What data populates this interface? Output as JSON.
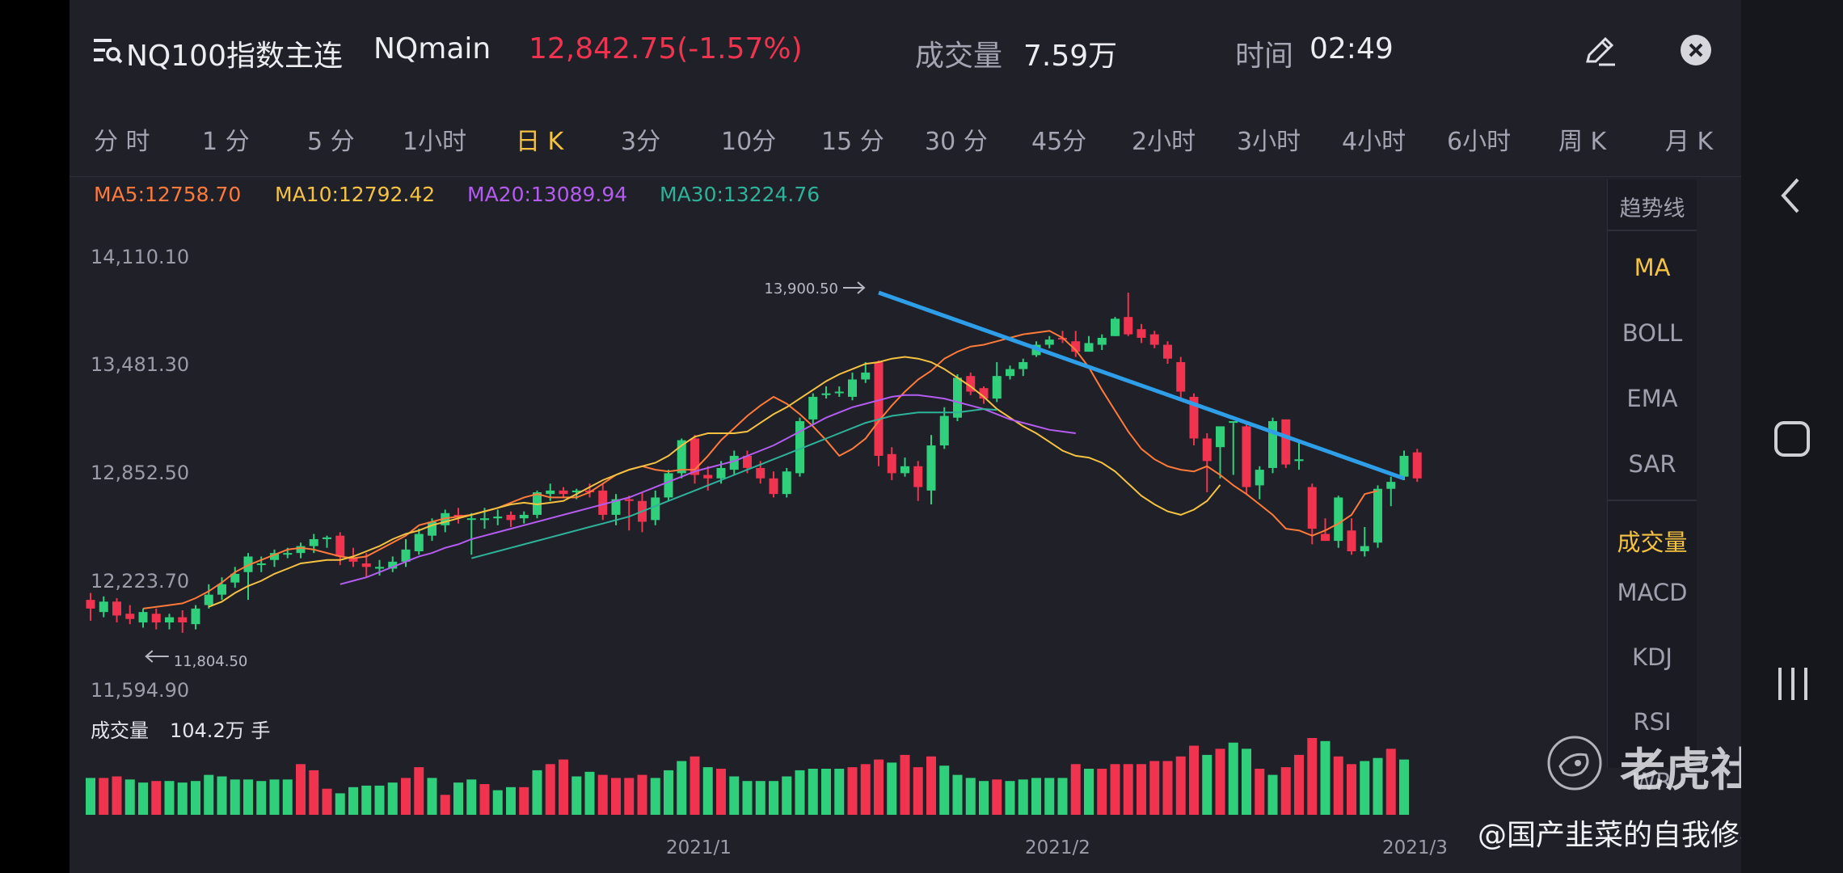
{
  "header": {
    "menu_icon": "menu-search-icon",
    "instrument_name": "NQ100指数主连",
    "symbol": "NQmain",
    "price_change": "12,842.75(-1.57%)",
    "volume_label": "成交量",
    "volume_value": "7.59万",
    "time_label": "时间",
    "time_value": "02:49",
    "edit_icon": "pencil-icon",
    "close_icon": "close-icon"
  },
  "tabs": [
    "分 时",
    "1 分",
    "5 分",
    "1小时",
    "日 K",
    "3分",
    "10分",
    "15 分",
    "30 分",
    "45分",
    "2小时",
    "3小时",
    "4小时",
    "6小时",
    "周 K",
    "月 K"
  ],
  "active_tab": "日 K",
  "ma_legend": {
    "ma5": "MA5:12758.70",
    "ma10": "MA10:12792.42",
    "ma20": "MA20:13089.94",
    "ma30": "MA30:13224.76"
  },
  "price_axis": [
    "14,110.10",
    "13,481.30",
    "12,852.50",
    "12,223.70",
    "11,594.90"
  ],
  "high_marker": "13,900.50",
  "low_marker": "11,804.50",
  "volume_panel": {
    "label": "成交量",
    "value": "104.2万 手"
  },
  "date_axis": [
    "2021/1",
    "2021/2",
    "2021/3"
  ],
  "side_menu": {
    "top": [
      "趋势线",
      "MA",
      "BOLL",
      "EMA",
      "SAR"
    ],
    "bottom": [
      "成交量",
      "MACD",
      "KDJ",
      "RSI",
      "WR"
    ],
    "highlighted": [
      "MA",
      "成交量"
    ]
  },
  "watermark": {
    "brand": "老虎社区",
    "handle": "@国产韭菜的自我修养"
  },
  "colors": {
    "up": "#2fcf7c",
    "down": "#f0334f",
    "ma5": "#ff7a3a",
    "ma10": "#f5c242",
    "ma20": "#b45cf0",
    "ma30": "#2fb29a",
    "trendline": "#2f9ee8",
    "price_down": "#f0334f"
  },
  "chart_data": {
    "type": "candlestick",
    "ylim": [
      11594.9,
      14110.1
    ],
    "candles": [
      [
        12130,
        12080,
        12170,
        12010
      ],
      [
        12060,
        12120,
        12150,
        12030
      ],
      [
        12120,
        12040,
        12140,
        12000
      ],
      [
        12050,
        12020,
        12100,
        11990
      ],
      [
        12000,
        12060,
        12080,
        11970
      ],
      [
        12050,
        12000,
        12080,
        11960
      ],
      [
        12000,
        12030,
        12050,
        11960
      ],
      [
        12030,
        12000,
        12070,
        11940
      ],
      [
        11990,
        12080,
        12100,
        11960
      ],
      [
        12100,
        12160,
        12220,
        12080
      ],
      [
        12160,
        12220,
        12260,
        12130
      ],
      [
        12230,
        12280,
        12320,
        12200
      ],
      [
        12290,
        12380,
        12400,
        12130
      ],
      [
        12340,
        12340,
        12380,
        12290
      ],
      [
        12360,
        12400,
        12420,
        12320
      ],
      [
        12400,
        12400,
        12430,
        12370
      ],
      [
        12400,
        12440,
        12460,
        12370
      ],
      [
        12440,
        12480,
        12510,
        12400
      ],
      [
        12480,
        12490,
        12500,
        12430
      ],
      [
        12500,
        12380,
        12520,
        12330
      ],
      [
        12370,
        12350,
        12430,
        12320
      ],
      [
        12340,
        12320,
        12400,
        12260
      ],
      [
        12310,
        12320,
        12360,
        12270
      ],
      [
        12310,
        12350,
        12380,
        12290
      ],
      [
        12350,
        12420,
        12480,
        12320
      ],
      [
        12410,
        12510,
        12540,
        12390
      ],
      [
        12500,
        12580,
        12600,
        12470
      ],
      [
        12560,
        12630,
        12650,
        12520
      ],
      [
        12620,
        12610,
        12660,
        12570
      ],
      [
        12600,
        12600,
        12630,
        12390
      ],
      [
        12590,
        12600,
        12660,
        12540
      ],
      [
        12600,
        12610,
        12650,
        12560
      ],
      [
        12620,
        12590,
        12640,
        12550
      ],
      [
        12600,
        12620,
        12640,
        12570
      ],
      [
        12620,
        12750,
        12760,
        12600
      ],
      [
        12740,
        12760,
        12800,
        12700
      ],
      [
        12760,
        12740,
        12780,
        12720
      ],
      [
        12750,
        12760,
        12770,
        12710
      ],
      [
        12760,
        12750,
        12800,
        12720
      ],
      [
        12760,
        12620,
        12800,
        12590
      ],
      [
        12620,
        12710,
        12740,
        12560
      ],
      [
        12710,
        12700,
        12730,
        12530
      ],
      [
        12700,
        12580,
        12750,
        12520
      ],
      [
        12590,
        12720,
        12760,
        12560
      ],
      [
        12720,
        12860,
        12880,
        12700
      ],
      [
        12860,
        13050,
        13060,
        12830
      ],
      [
        13060,
        12850,
        13080,
        12800
      ],
      [
        12850,
        12830,
        12900,
        12760
      ],
      [
        12830,
        12890,
        12930,
        12800
      ],
      [
        12880,
        12960,
        12990,
        12850
      ],
      [
        12960,
        12890,
        12990,
        12860
      ],
      [
        12890,
        12830,
        12930,
        12800
      ],
      [
        12830,
        12740,
        12870,
        12720
      ],
      [
        12740,
        12870,
        12890,
        12720
      ],
      [
        12860,
        13160,
        13180,
        12840
      ],
      [
        13170,
        13300,
        13320,
        13140
      ],
      [
        13310,
        13320,
        13360,
        13290
      ],
      [
        13330,
        13330,
        13360,
        13300
      ],
      [
        13300,
        13400,
        13440,
        13280
      ],
      [
        13400,
        13440,
        13500,
        13380
      ],
      [
        13500,
        12960,
        13510,
        12900
      ],
      [
        12970,
        12860,
        13010,
        12820
      ],
      [
        12860,
        12900,
        12950,
        12840
      ],
      [
        12900,
        12780,
        12930,
        12700
      ],
      [
        12760,
        13020,
        13080,
        12680
      ],
      [
        13020,
        13190,
        13240,
        13000
      ],
      [
        13180,
        13410,
        13430,
        13160
      ],
      [
        13420,
        13330,
        13440,
        13310
      ],
      [
        13350,
        13290,
        13360,
        13260
      ],
      [
        13290,
        13420,
        13500,
        13270
      ],
      [
        13420,
        13460,
        13480,
        13400
      ],
      [
        13460,
        13500,
        13520,
        13420
      ],
      [
        13540,
        13600,
        13620,
        13530
      ],
      [
        13600,
        13630,
        13650,
        13580
      ],
      [
        13640,
        13630,
        13680,
        13610
      ],
      [
        13620,
        13560,
        13680,
        13530
      ],
      [
        13560,
        13610,
        13650,
        13560
      ],
      [
        13600,
        13640,
        13660,
        13570
      ],
      [
        13650,
        13750,
        13760,
        13650
      ],
      [
        13760,
        13660,
        13900,
        13650
      ],
      [
        13690,
        13640,
        13720,
        13610
      ],
      [
        13660,
        13600,
        13680,
        13580
      ],
      [
        13600,
        13520,
        13620,
        13490
      ],
      [
        13500,
        13330,
        13530,
        13280
      ],
      [
        13300,
        13060,
        13320,
        13020
      ],
      [
        13060,
        12930,
        13090,
        12750
      ],
      [
        13010,
        13130,
        13130,
        12830
      ],
      [
        13150,
        13160,
        13150,
        12850
      ],
      [
        13130,
        12780,
        13140,
        12740
      ],
      [
        12790,
        12880,
        12900,
        12710
      ],
      [
        12890,
        13160,
        13180,
        12860
      ],
      [
        13170,
        12910,
        13170,
        12890
      ],
      [
        12930,
        12940,
        13050,
        12880
      ],
      [
        12780,
        12540,
        12800,
        12450
      ],
      [
        12510,
        12470,
        12600,
        12470
      ],
      [
        12470,
        12720,
        12730,
        12430
      ],
      [
        12530,
        12410,
        12600,
        12390
      ],
      [
        12410,
        12440,
        12550,
        12380
      ],
      [
        12460,
        12770,
        12790,
        12430
      ],
      [
        12770,
        12810,
        12840,
        12670
      ],
      [
        12840,
        12960,
        12990,
        12820
      ],
      [
        12980,
        12830,
        13000,
        12810
      ]
    ],
    "ma_series": {
      "MA5": {
        "start": 4,
        "values": [
          12080,
          12090,
          12100,
          12110,
          12140,
          12180,
          12230,
          12290,
          12330,
          12360,
          12390,
          12420,
          12430,
          12420,
          12400,
          12380,
          12370,
          12380,
          12420,
          12460,
          12500,
          12560,
          12580,
          12600,
          12610,
          12620,
          12640,
          12660,
          12690,
          12720,
          12740,
          12720,
          12720,
          12720,
          12750,
          12800,
          12850,
          12880,
          12900,
          12880,
          12870,
          12880,
          12880,
          12960,
          13050,
          13120,
          13190,
          13250,
          13300,
          13260,
          13200,
          13130,
          13050,
          12960,
          13000,
          13060,
          13160,
          13250,
          13330,
          13400,
          13450,
          13520,
          13560,
          13590,
          13600,
          13620,
          13640,
          13660,
          13670,
          13680,
          13640,
          13570,
          13470,
          13340,
          13220,
          13100,
          13000,
          12940,
          12900,
          12880,
          12870,
          12900,
          12850,
          12790,
          12740,
          12680,
          12620,
          12540,
          12530,
          12500,
          12530,
          12570,
          12620,
          12740,
          12758.7
        ]
      },
      "MA10": {
        "start": 9,
        "values": [
          12090,
          12120,
          12170,
          12210,
          12240,
          12280,
          12310,
          12340,
          12350,
          12360,
          12360,
          12380,
          12410,
          12440,
          12480,
          12510,
          12530,
          12560,
          12580,
          12600,
          12620,
          12640,
          12660,
          12680,
          12690,
          12680,
          12690,
          12700,
          12740,
          12780,
          12820,
          12850,
          12880,
          12900,
          12920,
          12960,
          13020,
          13070,
          13090,
          13090,
          13090,
          13100,
          13150,
          13200,
          13240,
          13290,
          13340,
          13390,
          13430,
          13460,
          13490,
          13500,
          13520,
          13530,
          13520,
          13500,
          13460,
          13410,
          13360,
          13300,
          13230,
          13180,
          13130,
          13090,
          13040,
          12990,
          12960,
          12950,
          12920,
          12870,
          12800,
          12730,
          12680,
          12640,
          12620,
          12650,
          12700,
          12792.42
        ]
      },
      "MA20": {
        "start": 19,
        "values": [
          12220,
          12240,
          12260,
          12290,
          12320,
          12350,
          12380,
          12400,
          12430,
          12450,
          12480,
          12500,
          12520,
          12540,
          12560,
          12580,
          12600,
          12620,
          12640,
          12660,
          12680,
          12700,
          12720,
          12750,
          12780,
          12810,
          12840,
          12870,
          12890,
          12910,
          12930,
          12960,
          12990,
          13020,
          13060,
          13100,
          13140,
          13180,
          13210,
          13240,
          13260,
          13280,
          13300,
          13310,
          13310,
          13300,
          13290,
          13270,
          13250,
          13230,
          13200,
          13170,
          13150,
          13130,
          13110,
          13100,
          13089.94
        ]
      },
      "MA30": {
        "start": 29,
        "values": [
          12370,
          12390,
          12410,
          12430,
          12450,
          12470,
          12490,
          12510,
          12530,
          12550,
          12570,
          12590,
          12610,
          12640,
          12670,
          12700,
          12730,
          12760,
          12790,
          12820,
          12850,
          12880,
          12910,
          12940,
          12970,
          13000,
          13030,
          13060,
          13090,
          13120,
          13150,
          13170,
          13190,
          13200,
          13210,
          13210,
          13210,
          13210,
          13220,
          13230,
          13224.76
        ]
      }
    },
    "trendline": {
      "from_index": 60,
      "from": 13900.5,
      "to_index": 100,
      "to": 12830
    },
    "volume": [
      [
        0.48,
        1
      ],
      [
        0.48,
        0
      ],
      [
        0.5,
        0
      ],
      [
        0.46,
        1
      ],
      [
        0.42,
        1
      ],
      [
        0.44,
        0
      ],
      [
        0.44,
        1
      ],
      [
        0.42,
        1
      ],
      [
        0.44,
        1
      ],
      [
        0.52,
        1
      ],
      [
        0.5,
        1
      ],
      [
        0.46,
        1
      ],
      [
        0.46,
        1
      ],
      [
        0.44,
        1
      ],
      [
        0.46,
        1
      ],
      [
        0.46,
        1
      ],
      [
        0.66,
        0
      ],
      [
        0.58,
        0
      ],
      [
        0.34,
        0
      ],
      [
        0.28,
        1
      ],
      [
        0.36,
        1
      ],
      [
        0.38,
        1
      ],
      [
        0.38,
        1
      ],
      [
        0.42,
        1
      ],
      [
        0.48,
        0
      ],
      [
        0.62,
        0
      ],
      [
        0.48,
        1
      ],
      [
        0.26,
        0
      ],
      [
        0.42,
        1
      ],
      [
        0.46,
        1
      ],
      [
        0.4,
        0
      ],
      [
        0.32,
        1
      ],
      [
        0.36,
        1
      ],
      [
        0.36,
        0
      ],
      [
        0.58,
        1
      ],
      [
        0.66,
        0
      ],
      [
        0.72,
        0
      ],
      [
        0.5,
        1
      ],
      [
        0.56,
        1
      ],
      [
        0.52,
        0
      ],
      [
        0.48,
        0
      ],
      [
        0.48,
        0
      ],
      [
        0.52,
        0
      ],
      [
        0.48,
        1
      ],
      [
        0.58,
        1
      ],
      [
        0.7,
        1
      ],
      [
        0.76,
        0
      ],
      [
        0.62,
        1
      ],
      [
        0.6,
        0
      ],
      [
        0.5,
        1
      ],
      [
        0.44,
        1
      ],
      [
        0.44,
        1
      ],
      [
        0.44,
        1
      ],
      [
        0.5,
        1
      ],
      [
        0.58,
        1
      ],
      [
        0.6,
        1
      ],
      [
        0.6,
        1
      ],
      [
        0.6,
        1
      ],
      [
        0.62,
        0
      ],
      [
        0.66,
        0
      ],
      [
        0.72,
        0
      ],
      [
        0.68,
        1
      ],
      [
        0.78,
        0
      ],
      [
        0.62,
        0
      ],
      [
        0.76,
        0
      ],
      [
        0.64,
        1
      ],
      [
        0.52,
        1
      ],
      [
        0.48,
        1
      ],
      [
        0.44,
        1
      ],
      [
        0.46,
        0
      ],
      [
        0.44,
        1
      ],
      [
        0.46,
        1
      ],
      [
        0.48,
        1
      ],
      [
        0.48,
        1
      ],
      [
        0.48,
        1
      ],
      [
        0.66,
        0
      ],
      [
        0.6,
        1
      ],
      [
        0.6,
        0
      ],
      [
        0.66,
        0
      ],
      [
        0.66,
        0
      ],
      [
        0.66,
        0
      ],
      [
        0.7,
        0
      ],
      [
        0.7,
        0
      ],
      [
        0.76,
        0
      ],
      [
        0.9,
        0
      ],
      [
        0.78,
        1
      ],
      [
        0.86,
        0
      ],
      [
        0.94,
        1
      ],
      [
        0.86,
        1
      ],
      [
        0.6,
        0
      ],
      [
        0.52,
        1
      ],
      [
        0.62,
        0
      ],
      [
        0.78,
        0
      ],
      [
        1.0,
        0
      ],
      [
        0.96,
        1
      ],
      [
        0.76,
        0
      ],
      [
        0.66,
        0
      ],
      [
        0.7,
        1
      ],
      [
        0.74,
        1
      ],
      [
        0.86,
        0
      ],
      [
        0.72,
        1
      ]
    ]
  }
}
